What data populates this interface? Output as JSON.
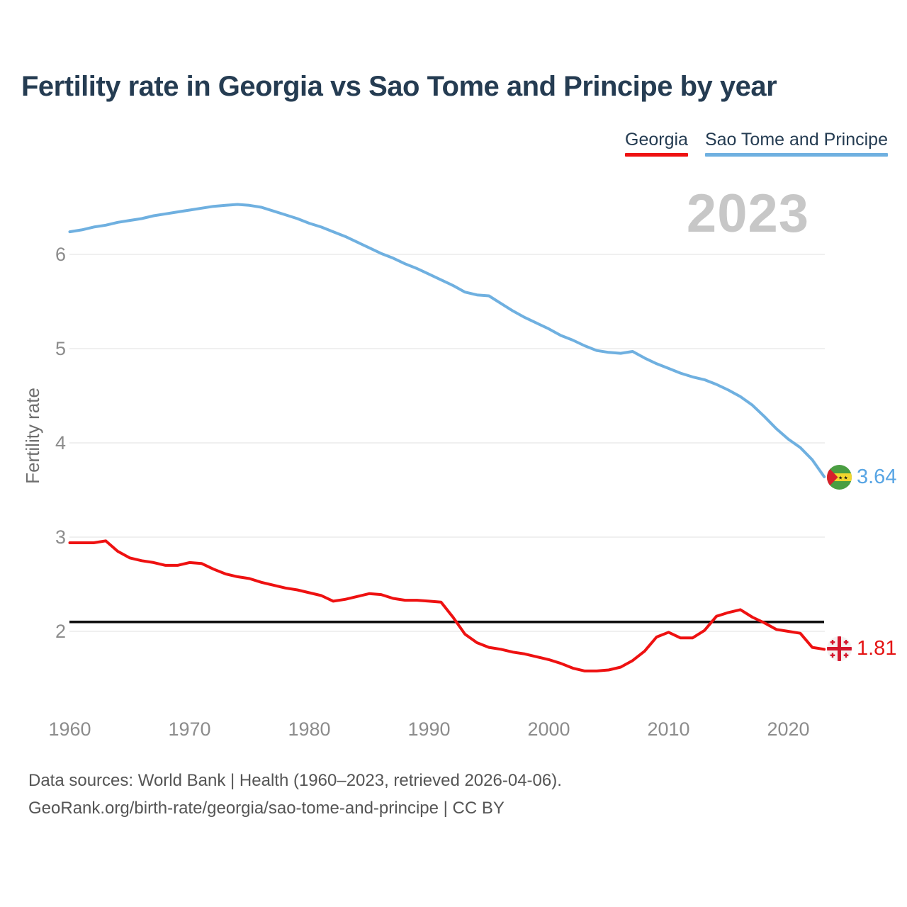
{
  "title": "Fertility rate in Georgia vs Sao Tome and Principe by year",
  "legend": {
    "items": [
      {
        "label": "Georgia",
        "color": "#ee1111"
      },
      {
        "label": "Sao Tome and Principe",
        "color": "#6fb0e0"
      }
    ]
  },
  "watermark": "2023",
  "y_axis_title": "Fertility rate",
  "footer": {
    "line1": "Data sources: World Bank | Health (1960–2023, retrieved 2026-04-06).",
    "line2": "GeoRank.org/birth-rate/georgia/sao-tome-and-principe | CC BY"
  },
  "chart_data": {
    "type": "line",
    "title": "Fertility rate in Georgia vs Sao Tome and Principe by year",
    "xlabel": "",
    "ylabel": "Fertility rate",
    "grid": "horizontal",
    "legend_position": "top-right",
    "xticks": [
      1960,
      1970,
      1980,
      1990,
      2000,
      2010,
      2020
    ],
    "yticks": [
      2,
      3,
      4,
      5,
      6
    ],
    "ylim": [
      1.1,
      6.7
    ],
    "xlim": [
      1960,
      2023
    ],
    "years": [
      1960,
      1961,
      1962,
      1963,
      1964,
      1965,
      1966,
      1967,
      1968,
      1969,
      1970,
      1971,
      1972,
      1973,
      1974,
      1975,
      1976,
      1977,
      1978,
      1979,
      1980,
      1981,
      1982,
      1983,
      1984,
      1985,
      1986,
      1987,
      1988,
      1989,
      1990,
      1991,
      1992,
      1993,
      1994,
      1995,
      1996,
      1997,
      1998,
      1999,
      2000,
      2001,
      2002,
      2003,
      2004,
      2005,
      2006,
      2007,
      2008,
      2009,
      2010,
      2011,
      2012,
      2013,
      2014,
      2015,
      2016,
      2017,
      2018,
      2019,
      2020,
      2021,
      2022,
      2023
    ],
    "series": [
      {
        "name": "Georgia",
        "color": "#ee1111",
        "end_label": "1.81",
        "values": [
          2.94,
          2.94,
          2.94,
          2.96,
          2.85,
          2.78,
          2.75,
          2.73,
          2.7,
          2.7,
          2.73,
          2.72,
          2.66,
          2.61,
          2.58,
          2.56,
          2.52,
          2.49,
          2.46,
          2.44,
          2.41,
          2.38,
          2.32,
          2.34,
          2.37,
          2.4,
          2.39,
          2.35,
          2.33,
          2.33,
          2.32,
          2.31,
          2.15,
          1.97,
          1.88,
          1.83,
          1.81,
          1.78,
          1.76,
          1.73,
          1.7,
          1.66,
          1.61,
          1.58,
          1.58,
          1.59,
          1.62,
          1.69,
          1.79,
          1.94,
          1.99,
          1.93,
          1.93,
          2.01,
          2.16,
          2.2,
          2.23,
          2.15,
          2.09,
          2.02,
          2.0,
          1.98,
          1.83,
          1.81
        ]
      },
      {
        "name": "Sao Tome and Principe",
        "color": "#6fb0e0",
        "end_label": "3.64",
        "values": [
          6.24,
          6.26,
          6.29,
          6.31,
          6.34,
          6.36,
          6.38,
          6.41,
          6.43,
          6.45,
          6.47,
          6.49,
          6.51,
          6.52,
          6.53,
          6.52,
          6.5,
          6.46,
          6.42,
          6.38,
          6.33,
          6.29,
          6.24,
          6.19,
          6.13,
          6.07,
          6.01,
          5.96,
          5.9,
          5.85,
          5.79,
          5.73,
          5.67,
          5.6,
          5.57,
          5.56,
          5.48,
          5.4,
          5.33,
          5.27,
          5.21,
          5.14,
          5.09,
          5.03,
          4.98,
          4.96,
          4.95,
          4.97,
          4.9,
          4.84,
          4.79,
          4.74,
          4.7,
          4.67,
          4.62,
          4.56,
          4.49,
          4.4,
          4.28,
          4.15,
          4.04,
          3.95,
          3.82,
          3.64
        ]
      }
    ],
    "replacement_line": {
      "value": 2.1,
      "color": "#111111"
    }
  }
}
